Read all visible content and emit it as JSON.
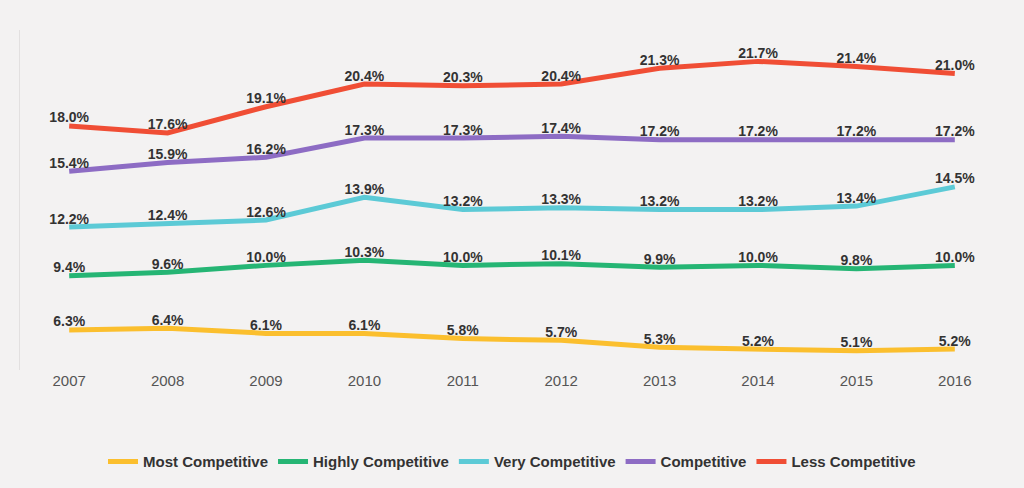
{
  "chart_data": {
    "type": "line",
    "categories": [
      "2007",
      "2008",
      "2009",
      "2010",
      "2011",
      "2012",
      "2013",
      "2014",
      "2015",
      "2016"
    ],
    "series": [
      {
        "name": "Most Competitive",
        "color": "#fbbf2e",
        "values": [
          6.3,
          6.4,
          6.1,
          6.1,
          5.8,
          5.7,
          5.3,
          5.2,
          5.1,
          5.2
        ],
        "value_labels": [
          "6.3%",
          "6.4%",
          "6.1%",
          "6.1%",
          "5.8%",
          "5.7%",
          "5.3%",
          "5.2%",
          "5.1%",
          "5.2%"
        ]
      },
      {
        "name": "Highly Competitive",
        "color": "#25b574",
        "values": [
          9.4,
          9.6,
          10.0,
          10.3,
          10.0,
          10.1,
          9.9,
          10.0,
          9.8,
          10.0
        ],
        "value_labels": [
          "9.4%",
          "9.6%",
          "10.0%",
          "10.3%",
          "10.0%",
          "10.1%",
          "9.9%",
          "10.0%",
          "9.8%",
          "10.0%"
        ]
      },
      {
        "name": "Very Competitive",
        "color": "#5ccad6",
        "values": [
          12.2,
          12.4,
          12.6,
          13.9,
          13.2,
          13.3,
          13.2,
          13.2,
          13.4,
          14.5
        ],
        "value_labels": [
          "12.2%",
          "12.4%",
          "12.6%",
          "13.9%",
          "13.2%",
          "13.3%",
          "13.2%",
          "13.2%",
          "13.4%",
          "14.5%"
        ]
      },
      {
        "name": "Competitive",
        "color": "#8d6cc4",
        "values": [
          15.4,
          15.9,
          16.2,
          17.3,
          17.3,
          17.4,
          17.2,
          17.2,
          17.2,
          17.2
        ],
        "value_labels": [
          "15.4%",
          "15.9%",
          "16.2%",
          "17.3%",
          "17.3%",
          "17.4%",
          "17.2%",
          "17.2%",
          "17.2%",
          "17.2%"
        ]
      },
      {
        "name": "Less Competitive",
        "color": "#f04e35",
        "values": [
          18.0,
          17.6,
          19.1,
          20.4,
          20.3,
          20.4,
          21.3,
          21.7,
          21.4,
          21.0
        ],
        "value_labels": [
          "18.0%",
          "17.6%",
          "19.1%",
          "20.4%",
          "20.3%",
          "20.4%",
          "21.3%",
          "21.7%",
          "21.4%",
          "21.0%"
        ]
      }
    ],
    "ylim": [
      4,
      23.5
    ],
    "grid": false,
    "legend": "bottom",
    "data_labels": true,
    "tick_labels": "x"
  }
}
